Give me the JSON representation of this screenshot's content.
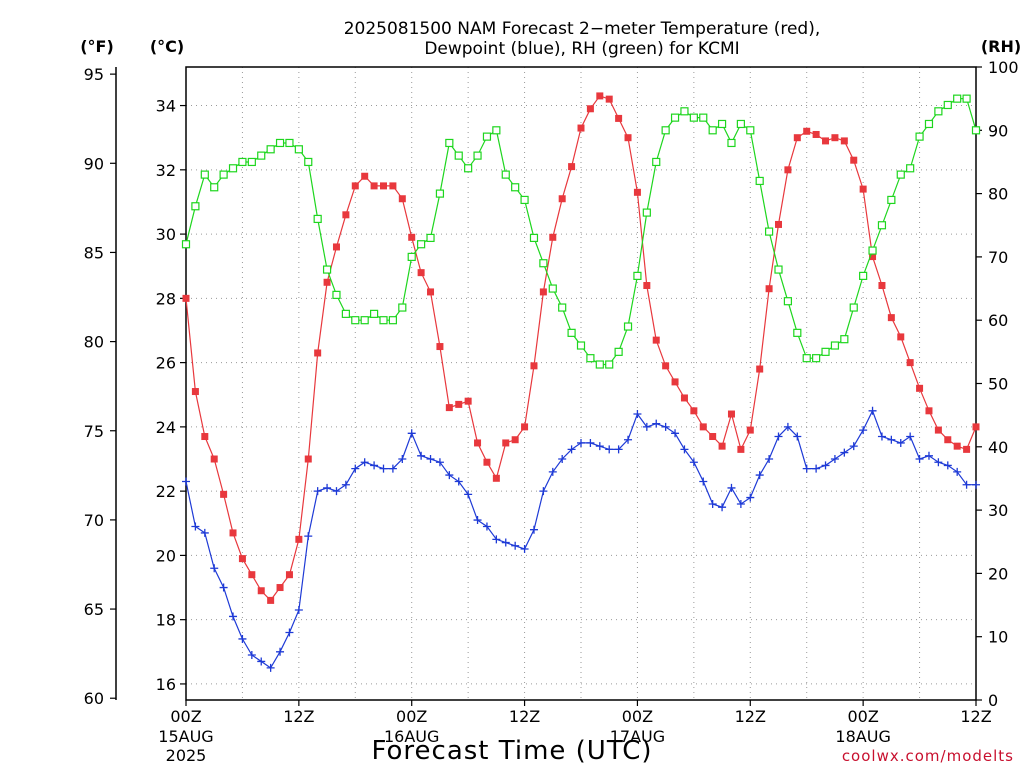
{
  "chart_data": {
    "type": "line",
    "title": "2025081500 NAM Forecast 2−meter Temperature (red),",
    "subtitle": "Dewpoint (blue), RH (green) for KCMI",
    "xlabel": "Forecast Time (UTC)",
    "credit": "coolwx.com/modelts",
    "units": {
      "fahrenheit": "(°F)",
      "celsius": "(°C)",
      "rh": "(RH)"
    },
    "x_range_hours": [
      0,
      72
    ],
    "x_ticks": [
      {
        "hour": 0,
        "label": "00Z",
        "date": "15AUG",
        "year": "2025"
      },
      {
        "hour": 12,
        "label": "12Z"
      },
      {
        "hour": 24,
        "label": "00Z",
        "date": "16AUG"
      },
      {
        "hour": 36,
        "label": "12Z"
      },
      {
        "hour": 48,
        "label": "00Z",
        "date": "17AUG"
      },
      {
        "hour": 60,
        "label": "12Z"
      },
      {
        "hour": 72,
        "label": "00Z",
        "date": "18AUG"
      },
      {
        "hour": 84,
        "label": "12Z"
      }
    ],
    "celsius_axis": {
      "range": [
        15.5,
        35.2
      ],
      "ticks": [
        16,
        18,
        20,
        22,
        24,
        26,
        28,
        30,
        32,
        34
      ]
    },
    "fahrenheit_axis": {
      "range": [
        59.9,
        95.4
      ],
      "ticks": [
        60,
        65,
        70,
        75,
        80,
        85,
        90,
        95
      ]
    },
    "rh_axis": {
      "range": [
        0,
        100
      ],
      "ticks": [
        0,
        10,
        20,
        30,
        40,
        50,
        60,
        70,
        80,
        90,
        100
      ]
    },
    "x_max": 84,
    "grid": true,
    "series": [
      {
        "name": "Temperature",
        "color": "#e8383d",
        "marker": "filled-square",
        "axis": "celsius",
        "values": [
          [
            0,
            28.0
          ],
          [
            1,
            25.1
          ],
          [
            2,
            23.7
          ],
          [
            3,
            23.0
          ],
          [
            4,
            21.9
          ],
          [
            5,
            20.7
          ],
          [
            6,
            19.9
          ],
          [
            7,
            19.4
          ],
          [
            8,
            18.9
          ],
          [
            9,
            18.6
          ],
          [
            10,
            19.0
          ],
          [
            11,
            19.4
          ],
          [
            12,
            20.5
          ],
          [
            13,
            23.0
          ],
          [
            14,
            26.3
          ],
          [
            15,
            28.5
          ],
          [
            16,
            29.6
          ],
          [
            17,
            30.6
          ],
          [
            18,
            31.5
          ],
          [
            19,
            31.8
          ],
          [
            20,
            31.5
          ],
          [
            21,
            31.5
          ],
          [
            22,
            31.5
          ],
          [
            23,
            31.1
          ],
          [
            24,
            29.9
          ],
          [
            25,
            28.8
          ],
          [
            26,
            28.2
          ],
          [
            27,
            26.5
          ],
          [
            28,
            24.6
          ],
          [
            29,
            24.7
          ],
          [
            30,
            24.8
          ],
          [
            31,
            23.5
          ],
          [
            32,
            22.9
          ],
          [
            33,
            22.4
          ],
          [
            34,
            23.5
          ],
          [
            35,
            23.6
          ],
          [
            36,
            24.0
          ],
          [
            37,
            25.9
          ],
          [
            38,
            28.2
          ],
          [
            39,
            29.9
          ],
          [
            40,
            31.1
          ],
          [
            41,
            32.1
          ],
          [
            42,
            33.3
          ],
          [
            43,
            33.9
          ],
          [
            44,
            34.3
          ],
          [
            45,
            34.2
          ],
          [
            46,
            33.6
          ],
          [
            47,
            33.0
          ],
          [
            48,
            31.3
          ],
          [
            49,
            28.4
          ],
          [
            50,
            26.7
          ],
          [
            51,
            25.9
          ],
          [
            52,
            25.4
          ],
          [
            53,
            24.9
          ],
          [
            54,
            24.5
          ],
          [
            55,
            24.0
          ],
          [
            56,
            23.7
          ],
          [
            57,
            23.4
          ],
          [
            58,
            24.4
          ],
          [
            59,
            23.3
          ],
          [
            60,
            23.9
          ],
          [
            61,
            25.8
          ],
          [
            62,
            28.3
          ],
          [
            63,
            30.3
          ],
          [
            64,
            32.0
          ],
          [
            65,
            33.0
          ],
          [
            66,
            33.2
          ],
          [
            67,
            33.1
          ],
          [
            68,
            32.9
          ],
          [
            69,
            33.0
          ],
          [
            70,
            32.9
          ],
          [
            71,
            32.3
          ],
          [
            72,
            31.4
          ],
          [
            73,
            29.3
          ],
          [
            74,
            28.4
          ],
          [
            75,
            27.4
          ],
          [
            76,
            26.8
          ],
          [
            77,
            26.0
          ],
          [
            78,
            25.2
          ],
          [
            79,
            24.5
          ],
          [
            80,
            23.9
          ],
          [
            81,
            23.6
          ],
          [
            82,
            23.4
          ],
          [
            83,
            23.3
          ],
          [
            84,
            24.0
          ]
        ]
      },
      {
        "name": "Dewpoint",
        "color": "#1e3ad6",
        "marker": "plus",
        "axis": "celsius",
        "values": [
          [
            0,
            22.3
          ],
          [
            1,
            20.9
          ],
          [
            2,
            20.7
          ],
          [
            3,
            19.6
          ],
          [
            4,
            19.0
          ],
          [
            5,
            18.1
          ],
          [
            6,
            17.4
          ],
          [
            7,
            16.9
          ],
          [
            8,
            16.7
          ],
          [
            9,
            16.5
          ],
          [
            10,
            17.0
          ],
          [
            11,
            17.6
          ],
          [
            12,
            18.3
          ],
          [
            13,
            20.6
          ],
          [
            14,
            22.0
          ],
          [
            15,
            22.1
          ],
          [
            16,
            22.0
          ],
          [
            17,
            22.2
          ],
          [
            18,
            22.7
          ],
          [
            19,
            22.9
          ],
          [
            20,
            22.8
          ],
          [
            21,
            22.7
          ],
          [
            22,
            22.7
          ],
          [
            23,
            23.0
          ],
          [
            24,
            23.8
          ],
          [
            25,
            23.1
          ],
          [
            26,
            23.0
          ],
          [
            27,
            22.9
          ],
          [
            28,
            22.5
          ],
          [
            29,
            22.3
          ],
          [
            30,
            21.9
          ],
          [
            31,
            21.1
          ],
          [
            32,
            20.9
          ],
          [
            33,
            20.5
          ],
          [
            34,
            20.4
          ],
          [
            35,
            20.3
          ],
          [
            36,
            20.2
          ],
          [
            37,
            20.8
          ],
          [
            38,
            22.0
          ],
          [
            39,
            22.6
          ],
          [
            40,
            23.0
          ],
          [
            41,
            23.3
          ],
          [
            42,
            23.5
          ],
          [
            43,
            23.5
          ],
          [
            44,
            23.4
          ],
          [
            45,
            23.3
          ],
          [
            46,
            23.3
          ],
          [
            47,
            23.6
          ],
          [
            48,
            24.4
          ],
          [
            49,
            24.0
          ],
          [
            50,
            24.1
          ],
          [
            51,
            24.0
          ],
          [
            52,
            23.8
          ],
          [
            53,
            23.3
          ],
          [
            54,
            22.9
          ],
          [
            55,
            22.3
          ],
          [
            56,
            21.6
          ],
          [
            57,
            21.5
          ],
          [
            58,
            22.1
          ],
          [
            59,
            21.6
          ],
          [
            60,
            21.8
          ],
          [
            61,
            22.5
          ],
          [
            62,
            23.0
          ],
          [
            63,
            23.7
          ],
          [
            64,
            24.0
          ],
          [
            65,
            23.7
          ],
          [
            66,
            22.7
          ],
          [
            67,
            22.7
          ],
          [
            68,
            22.8
          ],
          [
            69,
            23.0
          ],
          [
            70,
            23.2
          ],
          [
            71,
            23.4
          ],
          [
            72,
            23.9
          ],
          [
            73,
            24.5
          ],
          [
            74,
            23.7
          ],
          [
            75,
            23.6
          ],
          [
            76,
            23.5
          ],
          [
            77,
            23.7
          ],
          [
            78,
            23.0
          ],
          [
            79,
            23.1
          ],
          [
            80,
            22.9
          ],
          [
            81,
            22.8
          ],
          [
            82,
            22.6
          ],
          [
            83,
            22.2
          ],
          [
            84,
            22.2
          ]
        ]
      },
      {
        "name": "RH",
        "color": "#1ed61e",
        "marker": "open-square",
        "axis": "rh",
        "values": [
          [
            0,
            72
          ],
          [
            1,
            78
          ],
          [
            2,
            83
          ],
          [
            3,
            81
          ],
          [
            4,
            83
          ],
          [
            5,
            84
          ],
          [
            6,
            85
          ],
          [
            7,
            85
          ],
          [
            8,
            86
          ],
          [
            9,
            87
          ],
          [
            10,
            88
          ],
          [
            11,
            88
          ],
          [
            12,
            87
          ],
          [
            13,
            85
          ],
          [
            14,
            76
          ],
          [
            15,
            68
          ],
          [
            16,
            64
          ],
          [
            17,
            61
          ],
          [
            18,
            60
          ],
          [
            19,
            60
          ],
          [
            20,
            61
          ],
          [
            21,
            60
          ],
          [
            22,
            60
          ],
          [
            23,
            62
          ],
          [
            24,
            70
          ],
          [
            25,
            72
          ],
          [
            26,
            73
          ],
          [
            27,
            80
          ],
          [
            28,
            88
          ],
          [
            29,
            86
          ],
          [
            30,
            84
          ],
          [
            31,
            86
          ],
          [
            32,
            89
          ],
          [
            33,
            90
          ],
          [
            34,
            83
          ],
          [
            35,
            81
          ],
          [
            36,
            79
          ],
          [
            37,
            73
          ],
          [
            38,
            69
          ],
          [
            39,
            65
          ],
          [
            40,
            62
          ],
          [
            41,
            58
          ],
          [
            42,
            56
          ],
          [
            43,
            54
          ],
          [
            44,
            53
          ],
          [
            45,
            53
          ],
          [
            46,
            55
          ],
          [
            47,
            59
          ],
          [
            48,
            67
          ],
          [
            49,
            77
          ],
          [
            50,
            85
          ],
          [
            51,
            90
          ],
          [
            52,
            92
          ],
          [
            53,
            93
          ],
          [
            54,
            92
          ],
          [
            55,
            92
          ],
          [
            56,
            90
          ],
          [
            57,
            91
          ],
          [
            58,
            88
          ],
          [
            59,
            91
          ],
          [
            60,
            90
          ],
          [
            61,
            82
          ],
          [
            62,
            74
          ],
          [
            63,
            68
          ],
          [
            64,
            63
          ],
          [
            65,
            58
          ],
          [
            66,
            54
          ],
          [
            67,
            54
          ],
          [
            68,
            55
          ],
          [
            69,
            56
          ],
          [
            70,
            57
          ],
          [
            71,
            62
          ],
          [
            72,
            67
          ],
          [
            73,
            71
          ],
          [
            74,
            75
          ],
          [
            75,
            79
          ],
          [
            76,
            83
          ],
          [
            77,
            84
          ],
          [
            78,
            89
          ],
          [
            79,
            91
          ],
          [
            80,
            93
          ],
          [
            81,
            94
          ],
          [
            82,
            95
          ],
          [
            83,
            95
          ],
          [
            84,
            90
          ]
        ]
      }
    ]
  },
  "colors": {
    "grid": "#9a9a9a",
    "credit": "#c8102e",
    "axis": "#000000"
  }
}
